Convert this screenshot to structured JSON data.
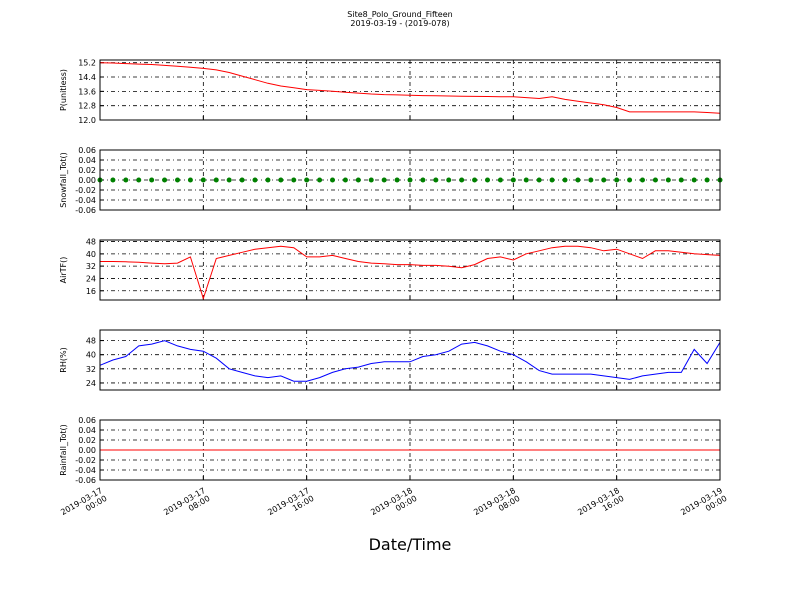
{
  "title": "Site8_Polo_Ground_Fifteen",
  "subtitle": "2019-03-19 - (2019-078)",
  "xlabel": "Date/Time",
  "xlim": [
    "2019-03-17 00:00",
    "2019-03-19 00:00"
  ],
  "xticks": [
    {
      "value": "2019-03-17 00:00",
      "label": "2019-03-17\n00:00"
    },
    {
      "value": "2019-03-17 08:00",
      "label": "2019-03-17\n08:00"
    },
    {
      "value": "2019-03-17 16:00",
      "label": "2019-03-17\n16:00"
    },
    {
      "value": "2019-03-18 00:00",
      "label": "2019-03-18\n00:00"
    },
    {
      "value": "2019-03-18 08:00",
      "label": "2019-03-18\n08:00"
    },
    {
      "value": "2019-03-18 16:00",
      "label": "2019-03-18\n16:00"
    },
    {
      "value": "2019-03-19 00:00",
      "label": "2019-03-19\n00:00"
    }
  ],
  "x": [
    "2019-03-17 00:00",
    "2019-03-17 01:00",
    "2019-03-17 02:00",
    "2019-03-17 03:00",
    "2019-03-17 04:00",
    "2019-03-17 05:00",
    "2019-03-17 06:00",
    "2019-03-17 07:00",
    "2019-03-17 08:00",
    "2019-03-17 09:00",
    "2019-03-17 10:00",
    "2019-03-17 11:00",
    "2019-03-17 12:00",
    "2019-03-17 13:00",
    "2019-03-17 14:00",
    "2019-03-17 15:00",
    "2019-03-17 16:00",
    "2019-03-17 17:00",
    "2019-03-17 18:00",
    "2019-03-17 19:00",
    "2019-03-17 20:00",
    "2019-03-17 21:00",
    "2019-03-17 22:00",
    "2019-03-17 23:00",
    "2019-03-18 00:00",
    "2019-03-18 01:00",
    "2019-03-18 02:00",
    "2019-03-18 03:00",
    "2019-03-18 04:00",
    "2019-03-18 05:00",
    "2019-03-18 06:00",
    "2019-03-18 07:00",
    "2019-03-18 08:00",
    "2019-03-18 09:00",
    "2019-03-18 10:00",
    "2019-03-18 11:00",
    "2019-03-18 12:00",
    "2019-03-18 13:00",
    "2019-03-18 14:00",
    "2019-03-18 15:00",
    "2019-03-18 16:00",
    "2019-03-18 17:00",
    "2019-03-18 18:00",
    "2019-03-18 19:00",
    "2019-03-18 20:00",
    "2019-03-18 21:00",
    "2019-03-18 22:00",
    "2019-03-18 23:00",
    "2019-03-19 00:00"
  ],
  "chart_data": [
    {
      "type": "line",
      "ylabel": "P(unitless)",
      "color": "#ff0000",
      "grid": true,
      "ylim": [
        12.0,
        15.35
      ],
      "yticks": [
        {
          "value": 12,
          "label": "12.0"
        },
        12.8,
        13.6,
        14.4,
        15.2
      ],
      "values": [
        15.2,
        15.18,
        15.15,
        15.12,
        15.1,
        15.05,
        15.0,
        14.95,
        14.88,
        14.8,
        14.65,
        14.45,
        14.25,
        14.05,
        13.9,
        13.8,
        13.7,
        13.65,
        13.6,
        13.55,
        13.5,
        13.45,
        13.42,
        13.4,
        13.38,
        13.36,
        13.35,
        13.34,
        13.33,
        13.32,
        13.31,
        13.3,
        13.3,
        13.25,
        13.2,
        13.3,
        13.15,
        13.05,
        12.95,
        12.85,
        12.7,
        12.45,
        12.45,
        12.45,
        12.45,
        12.45,
        12.45,
        12.42,
        12.38
      ]
    },
    {
      "type": "scatter",
      "ylabel": "Snowfall_Tot()",
      "color": "#008000",
      "grid": true,
      "ylim": [
        -0.06,
        0.06
      ],
      "yticks": [
        -0.06,
        -0.04,
        -0.02,
        {
          "value": 0,
          "label": "0.00"
        },
        0.02,
        0.04,
        0.06
      ],
      "values": [
        0,
        0,
        0,
        0,
        0,
        0,
        0,
        0,
        0,
        0,
        0,
        0,
        0,
        0,
        0,
        0,
        0,
        0,
        0,
        0,
        0,
        0,
        0,
        0,
        0,
        0,
        0,
        0,
        0,
        0,
        0,
        0,
        0,
        0,
        0,
        0,
        0,
        0,
        0,
        0,
        0,
        0,
        0,
        0,
        0,
        0,
        0,
        0,
        0
      ]
    },
    {
      "type": "line",
      "ylabel": "AirTF()",
      "color": "#ff0000",
      "grid": true,
      "ylim": [
        10,
        49
      ],
      "yticks": [
        16,
        24,
        32,
        40,
        48
      ],
      "values": [
        35,
        35,
        34.8,
        34.5,
        34,
        33.5,
        34,
        38,
        11,
        37,
        39,
        41,
        43,
        44,
        45,
        44,
        38,
        38,
        39,
        37,
        35,
        34,
        33.5,
        33,
        33,
        32.5,
        32.5,
        32,
        31,
        33,
        37,
        38,
        36,
        40,
        42,
        44,
        45,
        45,
        44,
        42,
        43,
        40,
        37,
        42,
        42,
        41,
        40,
        39.5,
        39
      ]
    },
    {
      "type": "line",
      "ylabel": "RH(%)",
      "color": "#0000ff",
      "grid": true,
      "ylim": [
        20,
        54
      ],
      "yticks": [
        24,
        32,
        40,
        48
      ],
      "values": [
        34,
        37,
        39,
        45,
        46,
        48,
        45,
        43,
        42,
        38,
        32,
        30,
        28,
        27,
        28,
        25,
        25,
        27,
        30,
        32,
        33,
        35,
        36,
        36,
        36,
        39,
        40,
        42,
        46,
        47,
        45,
        42,
        40,
        36,
        31,
        29,
        29,
        29,
        29,
        28,
        27,
        26,
        28,
        29,
        30,
        30,
        43,
        35,
        47
      ]
    },
    {
      "type": "line",
      "ylabel": "Rainfall_Tot()",
      "color": "#ff0000",
      "grid": true,
      "ylim": [
        -0.06,
        0.06
      ],
      "yticks": [
        -0.06,
        -0.04,
        -0.02,
        {
          "value": 0,
          "label": "0.00"
        },
        0.02,
        0.04,
        0.06
      ],
      "values": [
        0,
        0,
        0,
        0,
        0,
        0,
        0,
        0,
        0,
        0,
        0,
        0,
        0,
        0,
        0,
        0,
        0,
        0,
        0,
        0,
        0,
        0,
        0,
        0,
        0,
        0,
        0,
        0,
        0,
        0,
        0,
        0,
        0,
        0,
        0,
        0,
        0,
        0,
        0,
        0,
        0,
        0,
        0,
        0,
        0,
        0,
        0,
        0,
        0
      ]
    }
  ]
}
